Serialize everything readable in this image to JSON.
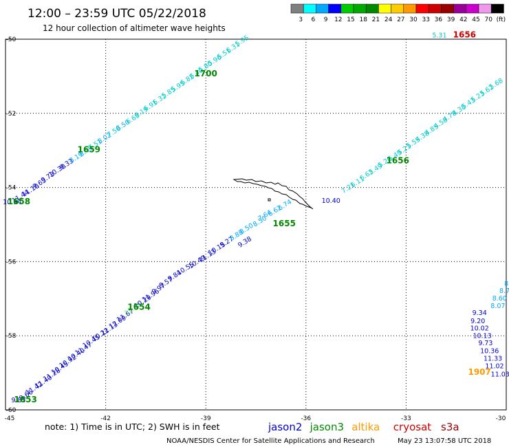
{
  "title": "12:00 – 23:59 UTC 05/22/2018",
  "subtitle": "12 hour collection of altimeter wave heights",
  "legend": {
    "colors": [
      "#7f7f7f",
      "#00ffff",
      "#00aaff",
      "#0000ff",
      "#00cc00",
      "#00aa00",
      "#008800",
      "#ffff00",
      "#ffcc00",
      "#ff9900",
      "#ff0000",
      "#cc0000",
      "#990000",
      "#990099",
      "#cc00cc",
      "#ee99ee",
      "#000000"
    ],
    "labels": [
      "3",
      "6",
      "9",
      "12",
      "15",
      "18",
      "21",
      "24",
      "27",
      "30",
      "33",
      "36",
      "39",
      "42",
      "45",
      "70",
      "(ft)"
    ]
  },
  "note": "note:  1) Time is in UTC;  2) SWH is in feet",
  "satellites": [
    {
      "name": "jason2",
      "color": "#0000cc"
    },
    {
      "name": "jason3",
      "color": "#008800"
    },
    {
      "name": "altika",
      "color": "#ff9900"
    },
    {
      "name": "cryosat",
      "color": "#cc0000"
    },
    {
      "name": "s3a",
      "color": "#990000"
    }
  ],
  "credit_left": "NOAA/NESDIS Center for Satellite Applications and Research",
  "credit_right": "May 23 13:07:58 UTC 2018",
  "chart_data": {
    "type": "scatter",
    "title": "12:00 – 23:59 UTC 05/22/2018",
    "subtitle": "12 hour collection of altimeter wave heights",
    "units": "ft",
    "xlim": [
      -45,
      -30
    ],
    "ylim": [
      -60,
      -50
    ],
    "x_ticks": [
      "-45",
      "-42",
      "-39",
      "-36",
      "-33",
      "-30"
    ],
    "y_ticks": [
      "-50",
      "-52",
      "-54",
      "-56",
      "-58",
      "-60"
    ],
    "grid": true,
    "labels": [
      {
        "lon": -44.61,
        "lat": -59.8,
        "text": "9.83",
        "color": "#0000cc"
      },
      {
        "lon": -44.35,
        "lat": -59.65,
        "text": "9.66",
        "color": "#0000cc"
      },
      {
        "lon": -44.11,
        "lat": -59.47,
        "text": "11.42",
        "color": "#0000cc"
      },
      {
        "lon": -43.83,
        "lat": -59.29,
        "text": "11.40",
        "color": "#0000cc"
      },
      {
        "lon": -43.58,
        "lat": -59.1,
        "text": "11.28",
        "color": "#0000cc"
      },
      {
        "lon": -43.34,
        "lat": -58.92,
        "text": "10.45",
        "color": "#0000cc"
      },
      {
        "lon": -43.1,
        "lat": -58.74,
        "text": "10.92",
        "color": "#0000cc"
      },
      {
        "lon": -42.85,
        "lat": -58.56,
        "text": "10.40",
        "color": "#0000cc"
      },
      {
        "lon": -42.63,
        "lat": -58.4,
        "text": "11.47",
        "color": "#0000cc"
      },
      {
        "lon": -42.4,
        "lat": -58.2,
        "text": "10.45",
        "color": "#0000cc"
      },
      {
        "lon": -42.12,
        "lat": -58.02,
        "text": "10.22",
        "color": "#0000cc"
      },
      {
        "lon": -41.86,
        "lat": -57.86,
        "text": "11.13",
        "color": "#0000cc"
      },
      {
        "lon": -41.61,
        "lat": -57.68,
        "text": "12.00",
        "color": "#0000cc"
      },
      {
        "lon": -41.38,
        "lat": -57.5,
        "text": "11.67",
        "color": "#0000cc"
      },
      {
        "lon": -41.15,
        "lat": -57.32,
        "text": "12.53",
        "color": "#66ff66"
      },
      {
        "lon": -40.86,
        "lat": -57.13,
        "text": "10.29",
        "color": "#0000cc"
      },
      {
        "lon": -40.62,
        "lat": -56.96,
        "text": "11.96",
        "color": "#0000cc"
      },
      {
        "lon": -40.38,
        "lat": -56.78,
        "text": "9.97",
        "color": "#0000cc"
      },
      {
        "lon": -40.16,
        "lat": -56.61,
        "text": "9.57",
        "color": "#0000cc"
      },
      {
        "lon": -39.9,
        "lat": -56.43,
        "text": "9.84",
        "color": "#0000cc"
      },
      {
        "lon": -39.58,
        "lat": -56.24,
        "text": "10.55",
        "color": "#0000cc"
      },
      {
        "lon": -39.23,
        "lat": -56.06,
        "text": "10.49",
        "color": "#0000cc"
      },
      {
        "lon": -38.92,
        "lat": -55.89,
        "text": "11.13",
        "color": "#0000cc"
      },
      {
        "lon": -38.64,
        "lat": -55.7,
        "text": "10.15",
        "color": "#0000cc"
      },
      {
        "lon": -38.34,
        "lat": -55.52,
        "text": "9.27",
        "color": "#0000cc"
      },
      {
        "lon": -38.05,
        "lat": -55.34,
        "text": "8.88",
        "color": "#00aaff"
      },
      {
        "lon": -37.75,
        "lat": -55.16,
        "text": "8.50",
        "color": "#00aaff"
      },
      {
        "lon": -37.35,
        "lat": -54.96,
        "text": "8.50",
        "color": "#00aaff"
      },
      {
        "lon": -37.2,
        "lat": -54.8,
        "text": "7.64",
        "color": "#00aaff"
      },
      {
        "lon": -36.9,
        "lat": -54.68,
        "text": "6.62",
        "color": "#00aaff"
      },
      {
        "lon": -37.8,
        "lat": -55.52,
        "text": "9.38",
        "color": "#0000cc"
      },
      {
        "lon": -36.6,
        "lat": -54.52,
        "text": "6.74",
        "color": "#00aaff"
      },
      {
        "lon": -35.25,
        "lat": -54.42,
        "text": "10.40",
        "color": "#0000cc"
      },
      {
        "lon": -34.7,
        "lat": -54.06,
        "text": "7.21",
        "color": "#00cccc"
      },
      {
        "lon": -34.42,
        "lat": -53.9,
        "text": "6.11",
        "color": "#00cccc"
      },
      {
        "lon": -34.15,
        "lat": -53.71,
        "text": "6.62",
        "color": "#00cccc"
      },
      {
        "lon": -33.88,
        "lat": -53.55,
        "text": "5.49",
        "color": "#00cccc"
      },
      {
        "lon": -33.6,
        "lat": -53.36,
        "text": "5.20",
        "color": "#00cccc"
      },
      {
        "lon": -33.3,
        "lat": -53.19,
        "text": "5.49",
        "color": "#00cccc"
      },
      {
        "lon": -33.02,
        "lat": -53.02,
        "text": "5.23",
        "color": "#00cccc"
      },
      {
        "lon": -32.75,
        "lat": -52.84,
        "text": "5.55",
        "color": "#00cccc"
      },
      {
        "lon": -32.48,
        "lat": -52.67,
        "text": "4.38",
        "color": "#00cccc"
      },
      {
        "lon": -32.2,
        "lat": -52.49,
        "text": "4.85",
        "color": "#00cccc"
      },
      {
        "lon": -31.93,
        "lat": -52.31,
        "text": "4.58",
        "color": "#00cccc"
      },
      {
        "lon": -31.66,
        "lat": -52.13,
        "text": "4.78",
        "color": "#00cccc"
      },
      {
        "lon": -31.38,
        "lat": -51.96,
        "text": "4.38",
        "color": "#00cccc"
      },
      {
        "lon": -31.1,
        "lat": -51.78,
        "text": "5.43",
        "color": "#00cccc"
      },
      {
        "lon": -30.82,
        "lat": -51.6,
        "text": "5.23",
        "color": "#00cccc"
      },
      {
        "lon": -30.55,
        "lat": -51.43,
        "text": "5.62",
        "color": "#00cccc"
      },
      {
        "lon": -30.27,
        "lat": -51.25,
        "text": "5.68",
        "color": "#00cccc"
      },
      {
        "lon": -44.8,
        "lat": -54.45,
        "text": "10.94",
        "color": "#0000cc"
      },
      {
        "lon": -44.52,
        "lat": -54.29,
        "text": "11.44",
        "color": "#0000cc"
      },
      {
        "lon": -44.22,
        "lat": -54.12,
        "text": "11.10",
        "color": "#0000cc"
      },
      {
        "lon": -43.95,
        "lat": -53.94,
        "text": "9.65",
        "color": "#0000cc"
      },
      {
        "lon": -43.7,
        "lat": -53.77,
        "text": "9.73",
        "color": "#0000cc"
      },
      {
        "lon": -43.42,
        "lat": -53.59,
        "text": "10.30",
        "color": "#0000cc"
      },
      {
        "lon": -43.14,
        "lat": -53.42,
        "text": "9.33",
        "color": "#0000cc"
      },
      {
        "lon": -42.85,
        "lat": -53.24,
        "text": "8.19",
        "color": "#00aaff"
      },
      {
        "lon": -42.55,
        "lat": -53.07,
        "text": "8.49",
        "color": "#00aaff"
      },
      {
        "lon": -42.28,
        "lat": -52.89,
        "text": "7.51",
        "color": "#00cccc"
      },
      {
        "lon": -42.0,
        "lat": -52.72,
        "text": "8.02",
        "color": "#00aaff"
      },
      {
        "lon": -41.72,
        "lat": -52.54,
        "text": "7.56",
        "color": "#00cccc"
      },
      {
        "lon": -41.45,
        "lat": -52.37,
        "text": "8.50",
        "color": "#00aaff"
      },
      {
        "lon": -41.15,
        "lat": -52.19,
        "text": "6.63",
        "color": "#00cccc"
      },
      {
        "lon": -40.9,
        "lat": -52.02,
        "text": "6.19",
        "color": "#00cccc"
      },
      {
        "lon": -40.62,
        "lat": -51.84,
        "text": "6.91",
        "color": "#00cccc"
      },
      {
        "lon": -40.35,
        "lat": -51.67,
        "text": "6.32",
        "color": "#00cccc"
      },
      {
        "lon": -40.08,
        "lat": -51.49,
        "text": "5.85",
        "color": "#00cccc"
      },
      {
        "lon": -39.8,
        "lat": -51.32,
        "text": "5.95",
        "color": "#00cccc"
      },
      {
        "lon": -39.52,
        "lat": -51.14,
        "text": "6.82",
        "color": "#00cccc"
      },
      {
        "lon": -39.25,
        "lat": -50.97,
        "text": "6.40",
        "color": "#00cccc"
      },
      {
        "lon": -38.98,
        "lat": -50.79,
        "text": "5.80",
        "color": "#00cccc"
      },
      {
        "lon": -38.7,
        "lat": -50.62,
        "text": "5.96",
        "color": "#00cccc"
      },
      {
        "lon": -38.42,
        "lat": -50.44,
        "text": "5.51",
        "color": "#00cccc"
      },
      {
        "lon": -38.15,
        "lat": -50.27,
        "text": "6.31",
        "color": "#00cccc"
      },
      {
        "lon": -37.88,
        "lat": -50.09,
        "text": "5.95",
        "color": "#00cccc"
      },
      {
        "lon": -32.0,
        "lat": -49.95,
        "text": "5.31",
        "color": "#00cccc"
      },
      {
        "lon": -30.18,
        "lat": -59.1,
        "text": "11.03",
        "color": "#0000cc"
      },
      {
        "lon": -30.35,
        "lat": -58.88,
        "text": "11.02",
        "color": "#0000cc"
      },
      {
        "lon": -30.4,
        "lat": -58.67,
        "text": "11.33",
        "color": "#0000cc"
      },
      {
        "lon": -30.5,
        "lat": -58.47,
        "text": "10.36",
        "color": "#0000cc"
      },
      {
        "lon": -30.62,
        "lat": -58.26,
        "text": "9.73",
        "color": "#0000cc"
      },
      {
        "lon": -30.72,
        "lat": -58.06,
        "text": "10.13",
        "color": "#0000cc"
      },
      {
        "lon": -30.8,
        "lat": -57.86,
        "text": "10.02",
        "color": "#0000cc"
      },
      {
        "lon": -30.85,
        "lat": -57.66,
        "text": "9.20",
        "color": "#0000cc"
      },
      {
        "lon": -30.8,
        "lat": -57.44,
        "text": "9.34",
        "color": "#0000cc"
      },
      {
        "lon": -30.25,
        "lat": -57.25,
        "text": "8.07",
        "color": "#00aaff"
      },
      {
        "lon": -30.2,
        "lat": -57.05,
        "text": "8.60",
        "color": "#00aaff"
      },
      {
        "lon": -30.05,
        "lat": -56.85,
        "text": "8.7",
        "color": "#00aaff"
      },
      {
        "lon": -30.0,
        "lat": -56.65,
        "text": "8",
        "color": "#00aaff"
      }
    ],
    "time_labels": [
      {
        "lon": -44.4,
        "lat": -59.8,
        "text": "1653",
        "color": "#008800"
      },
      {
        "lon": -41.0,
        "lat": -57.3,
        "text": "1654",
        "color": "#008800"
      },
      {
        "lon": -36.65,
        "lat": -55.05,
        "text": "1655",
        "color": "#008800"
      },
      {
        "lon": -33.25,
        "lat": -53.35,
        "text": "1656",
        "color": "#008800"
      },
      {
        "lon": -44.6,
        "lat": -54.45,
        "text": "1658",
        "color": "#008800"
      },
      {
        "lon": -42.5,
        "lat": -53.05,
        "text": "1659",
        "color": "#008800"
      },
      {
        "lon": -39.0,
        "lat": -51.0,
        "text": "1700",
        "color": "#008800"
      },
      {
        "lon": -31.25,
        "lat": -49.95,
        "text": "1656",
        "color": "#cc0000"
      },
      {
        "lon": -30.8,
        "lat": -59.05,
        "text": "1907",
        "color": "#ff9900"
      }
    ]
  }
}
